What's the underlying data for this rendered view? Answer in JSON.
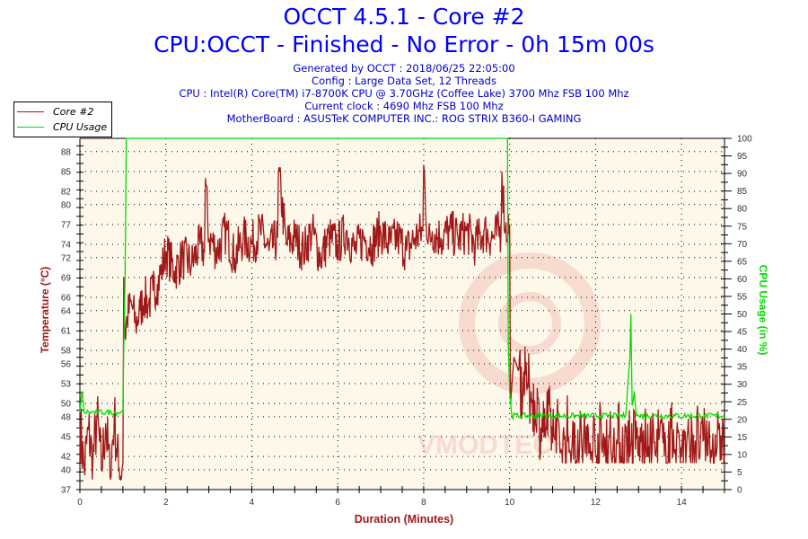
{
  "header": {
    "title": "OCCT 4.5.1 - Core #2",
    "subtitle": "CPU:OCCT - Finished - No Error - 0h 15m 00s",
    "info_lines": [
      "Generated by OCCT : 2018/06/25 22:05:00",
      "Config : Large Data Set, 12 Threads",
      "CPU : Intel(R) Core(TM) i7-8700K CPU @ 3.70GHz (Coffee Lake) 3700 Mhz FSB 100 Mhz",
      "Current clock : 4690 Mhz FSB 100 Mhz",
      "MotherBoard : ASUSTeK COMPUTER INC.: ROG STRIX B360-I GAMING"
    ]
  },
  "legend": {
    "items": [
      {
        "label": "Core #2",
        "color": "#a01818"
      },
      {
        "label": "CPU Usage",
        "color": "#00dd00"
      }
    ]
  },
  "watermark": "VMODTECH.COM",
  "colors": {
    "temperature": "#a01818",
    "cpu_usage": "#00dd00",
    "plot_bg": "#fdf8ea",
    "title": "#0000ff",
    "info": "#0000cc"
  },
  "chart_data": {
    "type": "line",
    "title": "OCCT 4.5.1 - Core #2",
    "subtitle": "CPU:OCCT - Finished - No Error - 0h 15m 00s",
    "xlabel": "Duration (Minutes)",
    "ylabel": "Temperature (°C)",
    "y2label": "CPU Usage (in %)",
    "xlim": [
      0,
      15
    ],
    "ylim": [
      37,
      90
    ],
    "y2lim": [
      0,
      100
    ],
    "x_ticks": [
      0,
      2,
      4,
      6,
      8,
      10,
      12,
      14
    ],
    "y_ticks": [
      37,
      40,
      42,
      45,
      48,
      50,
      53,
      56,
      58,
      61,
      64,
      66,
      69,
      72,
      74,
      77,
      80,
      82,
      85,
      88
    ],
    "y2_ticks": [
      0,
      5,
      10,
      15,
      20,
      25,
      30,
      35,
      40,
      45,
      50,
      55,
      60,
      65,
      70,
      75,
      80,
      85,
      90,
      95,
      100
    ],
    "grid": true,
    "legend_position": "top-left",
    "series": [
      {
        "name": "Core #2",
        "axis": "left",
        "x": [
          0,
          0.1,
          0.2,
          0.3,
          0.4,
          0.5,
          0.6,
          0.7,
          0.8,
          0.9,
          0.98,
          1.0,
          1.02,
          1.05,
          1.1,
          1.2,
          1.3,
          1.4,
          1.5,
          1.6,
          1.7,
          1.8,
          1.9,
          2.0,
          2.2,
          2.4,
          2.6,
          2.8,
          2.9,
          2.92,
          3.0,
          3.2,
          3.4,
          3.6,
          3.8,
          4.0,
          4.2,
          4.4,
          4.6,
          4.62,
          4.8,
          5.0,
          5.2,
          5.4,
          5.6,
          5.8,
          6.0,
          6.2,
          6.4,
          6.6,
          6.8,
          7.0,
          7.2,
          7.4,
          7.6,
          7.8,
          7.98,
          8.0,
          8.1,
          8.2,
          8.4,
          8.6,
          8.8,
          9.0,
          9.2,
          9.4,
          9.6,
          9.8,
          9.82,
          9.9,
          10.0,
          10.02,
          10.1,
          10.2,
          10.3,
          10.4,
          10.6,
          10.8,
          11.0,
          11.2,
          11.4,
          11.6,
          11.8,
          12.0,
          12.2,
          12.4,
          12.6,
          12.8,
          13.0,
          13.2,
          13.4,
          13.6,
          13.8,
          14.0,
          14.2,
          14.4,
          14.6,
          14.8,
          15.0
        ],
        "values": [
          47,
          40,
          46,
          41,
          48,
          40,
          47,
          39,
          48,
          40,
          40,
          41,
          69,
          60,
          63,
          65,
          62,
          64,
          66,
          65,
          67,
          68,
          70,
          73,
          70,
          72,
          71,
          74,
          73,
          84,
          75,
          73,
          76,
          72,
          75,
          74,
          76,
          73,
          75,
          85,
          74,
          75,
          73,
          76,
          72,
          75,
          74,
          76,
          73,
          75,
          74,
          76,
          74,
          75,
          73,
          75,
          76,
          86,
          74,
          76,
          75,
          76,
          75,
          76,
          74,
          76,
          75,
          76,
          85,
          76,
          77,
          50,
          57,
          55,
          50,
          52,
          47,
          45,
          44,
          43,
          43,
          42,
          42,
          42,
          42,
          42,
          42,
          42,
          42,
          42,
          42,
          42,
          42,
          42,
          42,
          42,
          42,
          42,
          42
        ]
      },
      {
        "name": "CPU Usage",
        "axis": "right",
        "x": [
          0,
          0.05,
          0.1,
          0.2,
          1.0,
          1.02,
          1.05,
          1.08,
          9.95,
          9.97,
          10.0,
          10.05,
          12.7,
          12.75,
          12.8,
          12.82,
          12.85,
          12.9,
          12.95,
          13.0,
          15.0
        ],
        "values": [
          22,
          28,
          22,
          22,
          22,
          40,
          60,
          100,
          100,
          40,
          28,
          21,
          21,
          30,
          38,
          50,
          24,
          28,
          21,
          21,
          21
        ]
      }
    ],
    "observations": "Idle at ~40-48°C before load; at ~1 min CPU usage jumps to 100% and temperature rises to ~72-77°C with spikes to ~84-86°C; at ~10 min load ends, CPU usage drops to ~21% and temperature falls to ~42-50°C with oscillation."
  }
}
